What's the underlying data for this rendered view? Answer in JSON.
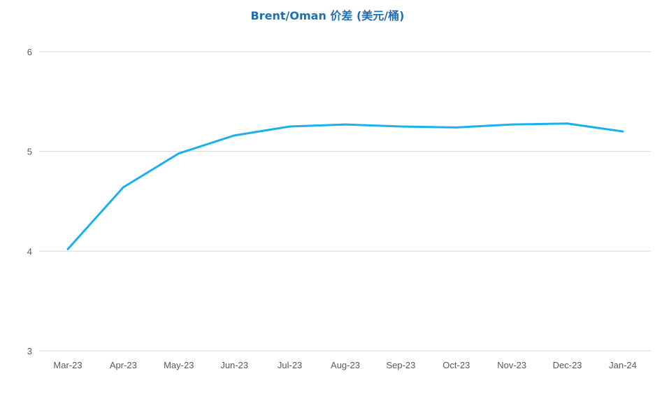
{
  "chart_data": {
    "type": "line",
    "title": "Brent/Oman 价差 (美元/桶)",
    "xlabel": "",
    "ylabel": "",
    "categories": [
      "Mar-23",
      "Apr-23",
      "May-23",
      "Jun-23",
      "Jul-23",
      "Aug-23",
      "Sep-23",
      "Oct-23",
      "Nov-23",
      "Dec-23",
      "Jan-24"
    ],
    "series": [
      {
        "values": [
          4.02,
          4.64,
          4.98,
          5.16,
          5.25,
          5.27,
          5.25,
          5.24,
          5.27,
          5.28,
          5.2
        ]
      }
    ],
    "ylim": [
      3,
      6
    ],
    "yticks": [
      3,
      4,
      5,
      6
    ],
    "grid": true,
    "legend": "none",
    "colors": {
      "line": "#1ab0ec",
      "title": "#1f6fb5",
      "grid": "#d9d9d9",
      "tick_text": "#595959"
    }
  }
}
